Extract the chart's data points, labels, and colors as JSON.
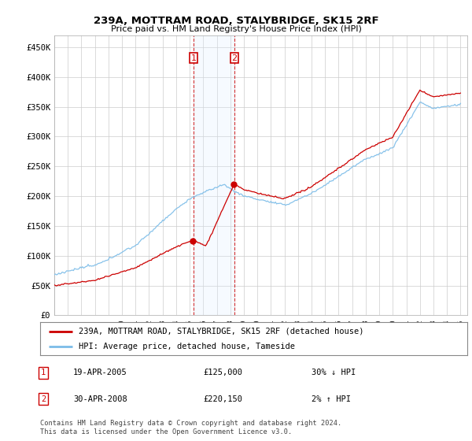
{
  "title": "239A, MOTTRAM ROAD, STALYBRIDGE, SK15 2RF",
  "subtitle": "Price paid vs. HM Land Registry's House Price Index (HPI)",
  "ylabel_ticks": [
    "£0",
    "£50K",
    "£100K",
    "£150K",
    "£200K",
    "£250K",
    "£300K",
    "£350K",
    "£400K",
    "£450K"
  ],
  "ytick_values": [
    0,
    50000,
    100000,
    150000,
    200000,
    250000,
    300000,
    350000,
    400000,
    450000
  ],
  "ylim": [
    0,
    470000
  ],
  "hpi_color": "#7bbce8",
  "price_color": "#cc0000",
  "transaction1_t": 2005.29,
  "transaction1_price": 125000,
  "transaction2_t": 2008.29,
  "transaction2_price": 220150,
  "shade_color": "#ddeeff",
  "legend_house": "239A, MOTTRAM ROAD, STALYBRIDGE, SK15 2RF (detached house)",
  "legend_hpi": "HPI: Average price, detached house, Tameside",
  "footnote": "Contains HM Land Registry data © Crown copyright and database right 2024.\nThis data is licensed under the Open Government Licence v3.0.",
  "background_color": "#ffffff",
  "grid_color": "#cccccc",
  "tx1_date": "19-APR-2005",
  "tx2_date": "30-APR-2008",
  "tx1_hpi_diff": "30% ↓ HPI",
  "tx2_hpi_diff": "2% ↑ HPI"
}
